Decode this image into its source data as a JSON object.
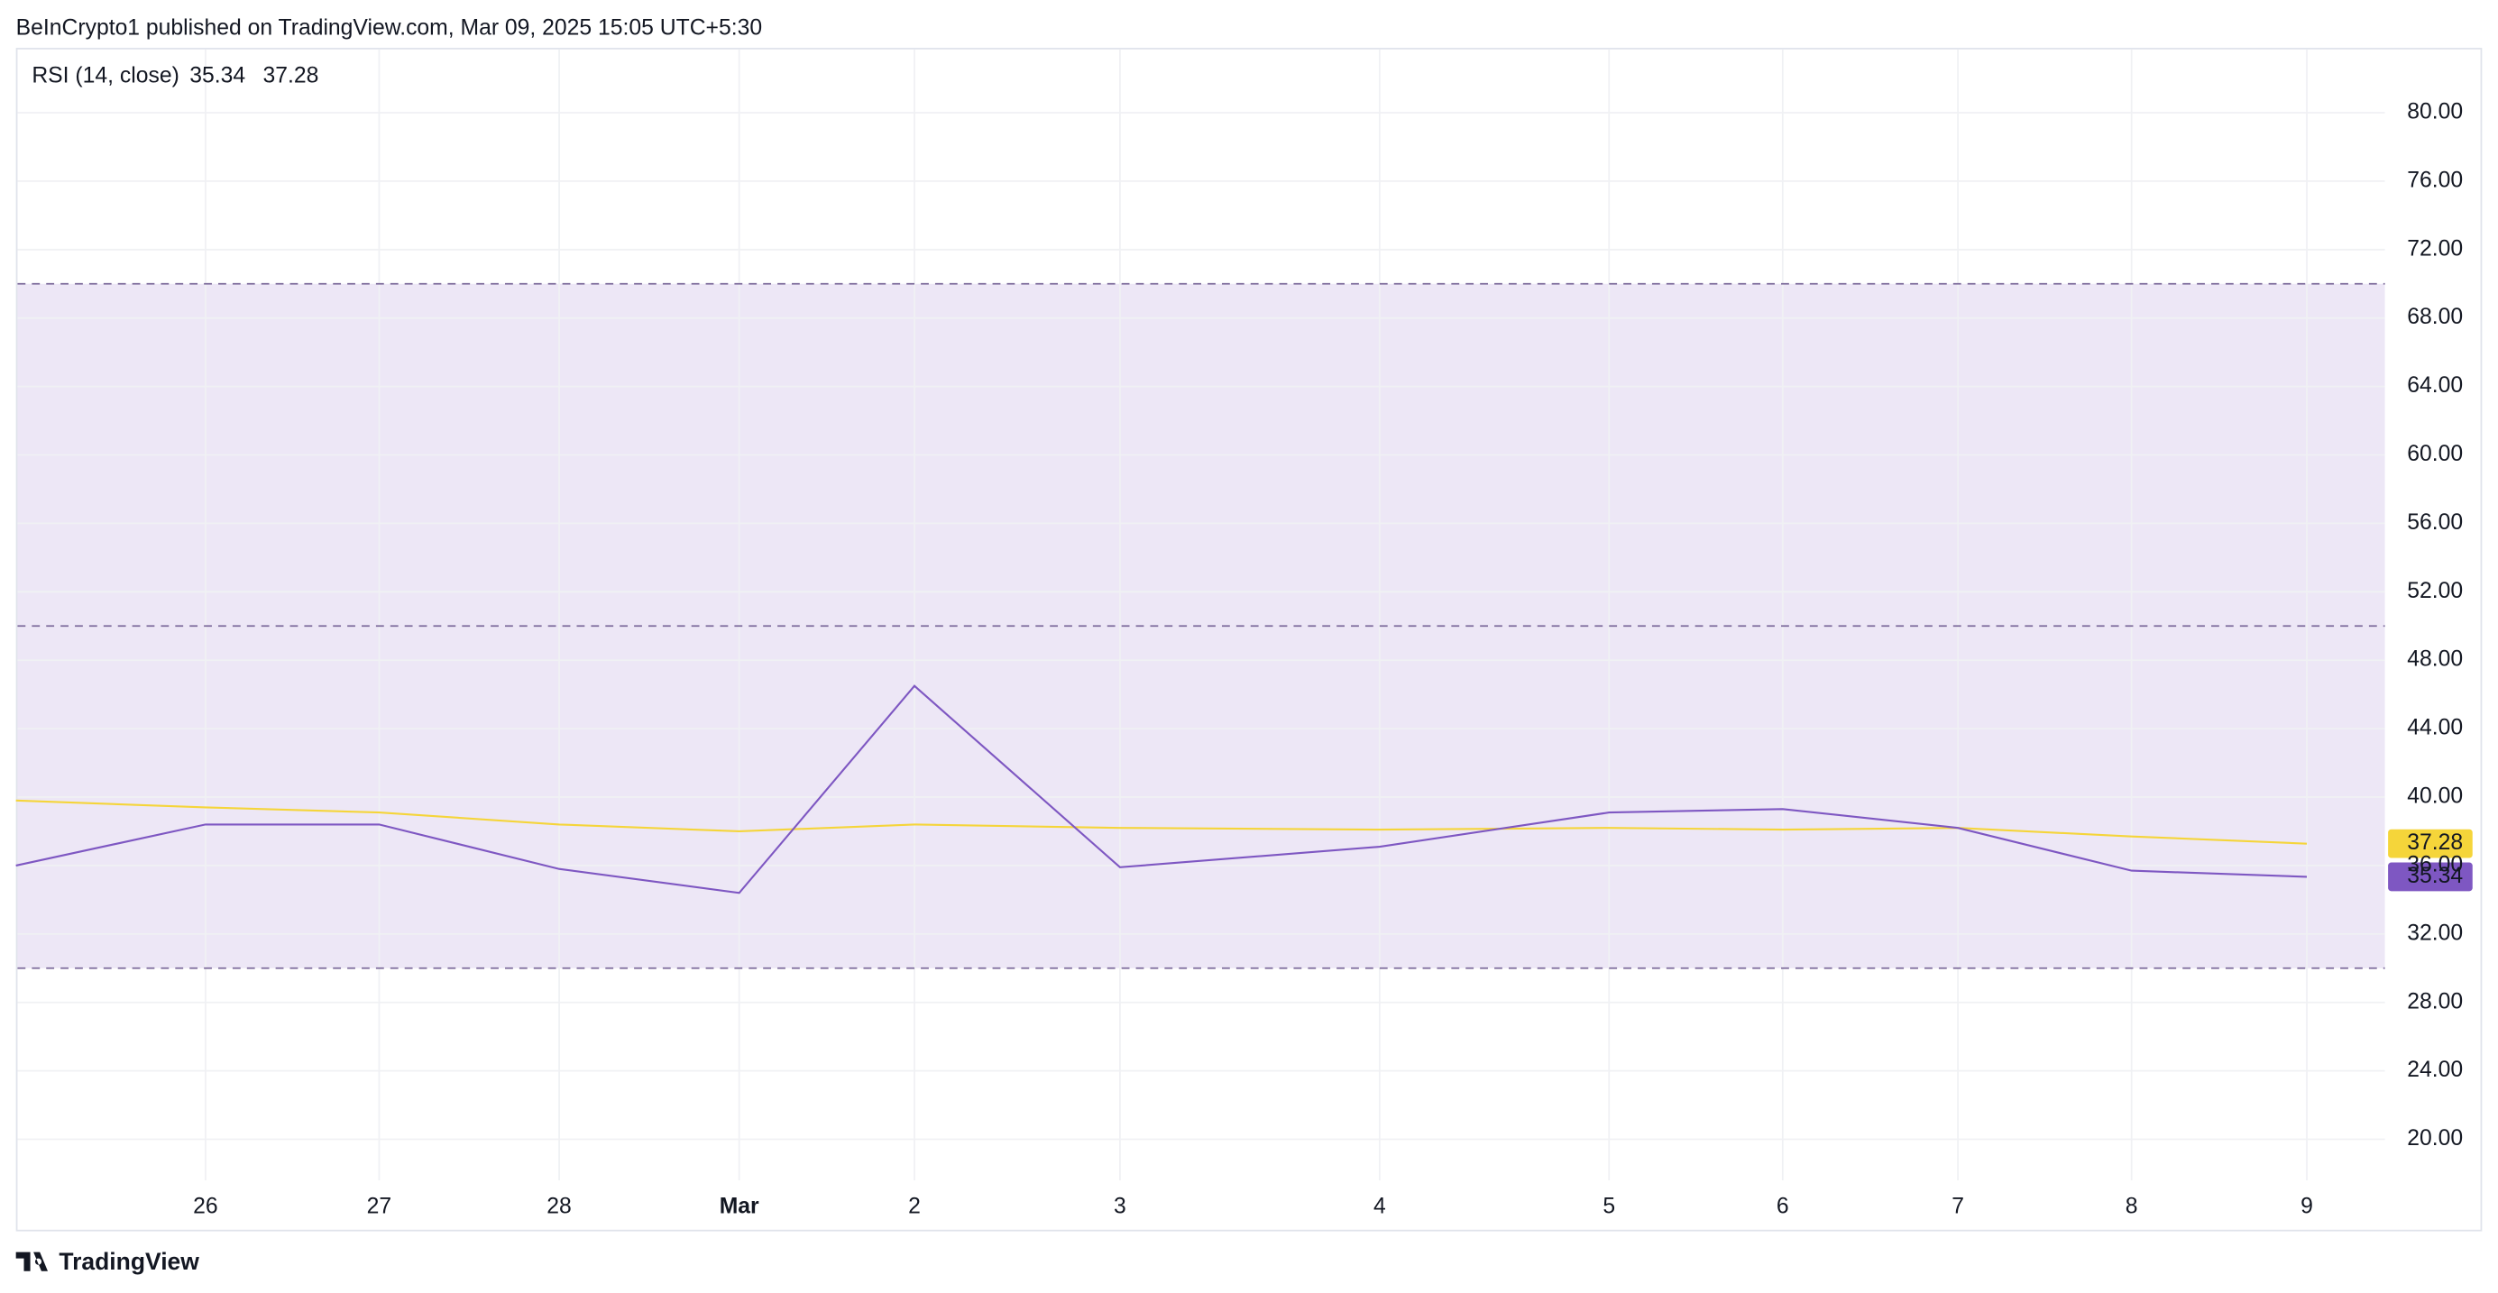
{
  "header": {
    "text": "BeInCrypto1 published on TradingView.com, Mar 09, 2025 15:05 UTC+5:30"
  },
  "footer": {
    "brand": "TradingView"
  },
  "chart_data": {
    "type": "line",
    "title": "RSI (14, close)",
    "categories": [
      null,
      "26",
      "27",
      "28",
      "Mar",
      "2",
      "3",
      "4",
      "5",
      "6",
      "7",
      "8",
      "9"
    ],
    "series": [
      {
        "color": "#7e57c2",
        "values": [
          36.0,
          38.4,
          38.4,
          35.8,
          34.4,
          46.5,
          35.9,
          37.1,
          39.1,
          39.3,
          38.2,
          35.7,
          35.34
        ]
      },
      {
        "color": "#f5d53a",
        "values": [
          39.8,
          39.4,
          39.1,
          38.4,
          38.0,
          38.4,
          38.2,
          38.1,
          38.2,
          38.1,
          38.2,
          37.7,
          37.28
        ]
      }
    ],
    "ylim": [
      17.6,
      83.7
    ],
    "yticks": [
      {
        "value": 20,
        "label": "20.00"
      },
      {
        "value": 24,
        "label": "24.00"
      },
      {
        "value": 28,
        "label": "28.00"
      },
      {
        "value": 32,
        "label": "32.00"
      },
      {
        "value": 36,
        "label": "36.00"
      },
      {
        "value": 40,
        "label": "40.00"
      },
      {
        "value": 44,
        "label": "44.00"
      },
      {
        "value": 48,
        "label": "48.00"
      },
      {
        "value": 52,
        "label": "52.00"
      },
      {
        "value": 56,
        "label": "56.00"
      },
      {
        "value": 60,
        "label": "60.00"
      },
      {
        "value": 64,
        "label": "64.00"
      },
      {
        "value": 68,
        "label": "68.00"
      },
      {
        "value": 72,
        "label": "72.00"
      },
      {
        "value": 76,
        "label": "76.00"
      },
      {
        "value": 80,
        "label": "80.00"
      }
    ],
    "levels": [
      70,
      50,
      30
    ],
    "band": [
      30,
      70
    ],
    "band_color": "#ede7f6",
    "grid": true
  }
}
